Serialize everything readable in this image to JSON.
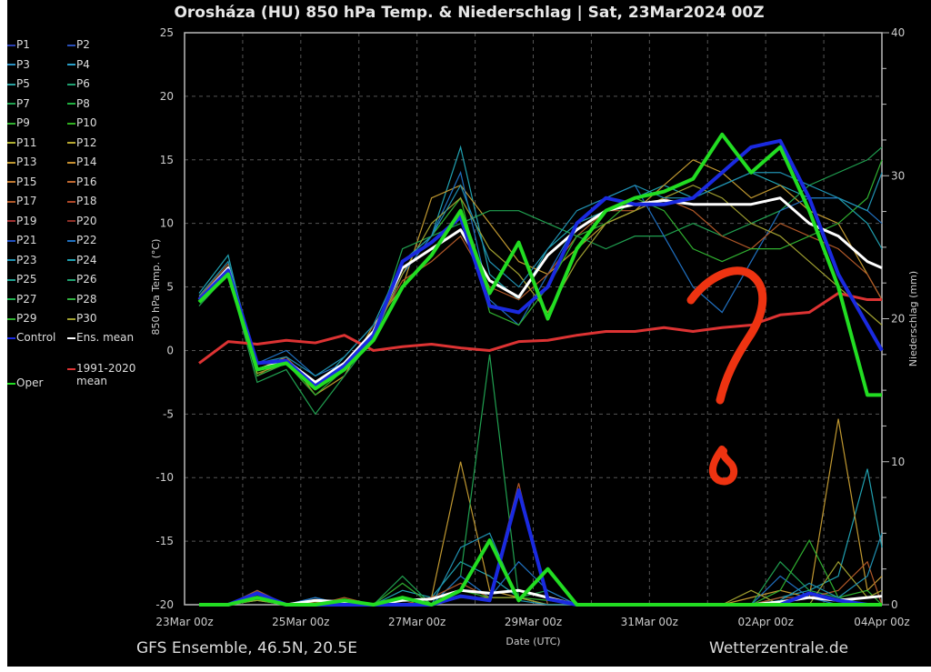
{
  "chart_data": {
    "type": "line",
    "title": "Orosháza  (HU)  850 hPa Temp. & Niederschlag | Sat, 23Mar2024 00Z",
    "xlabel": "Date (UTC)",
    "ylabel": "850 hPa Temp. (°C)",
    "y2label": "Niederschlag (mm)",
    "xlim_days": [
      0,
      12
    ],
    "ylim": [
      -20,
      25
    ],
    "y2lim": [
      0,
      40
    ],
    "grid": true,
    "x_ticks": [
      "23Mar 00z",
      "25Mar 00z",
      "27Mar 00z",
      "29Mar 00z",
      "31Mar 00z",
      "02Apr 00z",
      "04Apr 00z"
    ],
    "y_ticks": [
      "25",
      "20",
      "15",
      "10",
      "5",
      "0",
      "-5",
      "-10",
      "-15",
      "-20"
    ],
    "y2_ticks": [
      "40",
      "30",
      "20",
      "10",
      "0"
    ],
    "x_days": [
      0.25,
      0.75,
      1.25,
      1.75,
      2.25,
      2.75,
      3.25,
      3.75,
      4.25,
      4.75,
      5.25,
      5.75,
      6.25,
      6.75,
      7.25,
      7.75,
      8.25,
      8.75,
      9.25,
      9.75,
      10.25,
      10.75,
      11.25,
      11.75,
      12
    ],
    "legend": {
      "members": [
        "P1",
        "P2",
        "P3",
        "P4",
        "P5",
        "P6",
        "P7",
        "P8",
        "P9",
        "P10",
        "P11",
        "P12",
        "P13",
        "P14",
        "P15",
        "P16",
        "P17",
        "P18",
        "P19",
        "P20",
        "P21",
        "P22",
        "P23",
        "P24",
        "P25",
        "P26",
        "P27",
        "P28",
        "P29",
        "P30"
      ],
      "member_colors": [
        "#2a3fb0",
        "#2a4fb8",
        "#2a8fc0",
        "#2a9fc8",
        "#2aa0a0",
        "#20a070",
        "#20a050",
        "#20b040",
        "#30b030",
        "#30b020",
        "#b0b030",
        "#b8a830",
        "#c09830",
        "#c89030",
        "#c07830",
        "#c06830",
        "#b05828",
        "#b04828",
        "#a03030",
        "#903028",
        "#2050c0",
        "#2070c0",
        "#2090b0",
        "#20a0b0",
        "#20a090",
        "#20a070",
        "#20b050",
        "#30b040",
        "#30b030",
        "#a0a030"
      ],
      "control": "Control",
      "ens_mean": "Ens. mean",
      "clim_mean_line1": "1991-2020",
      "clim_mean_line2": "mean",
      "oper": "Oper"
    },
    "series": [
      {
        "name": "Ens. mean",
        "color": "#ffffff",
        "width": 3,
        "temp": [
          4,
          6.5,
          -1.5,
          -0.8,
          -2.5,
          -1,
          1.5,
          6.5,
          8,
          9.5,
          5.5,
          4.2,
          7.5,
          9.5,
          11,
          11.5,
          11.8,
          11.5,
          11.5,
          11.5,
          12,
          10,
          9,
          7,
          6.5
        ],
        "precip": [
          0,
          0,
          0.5,
          0,
          0.3,
          0.2,
          0,
          0.3,
          0.4,
          1,
          0.8,
          1,
          0.5,
          0,
          0,
          0,
          0,
          0,
          0,
          0,
          0.2,
          0.5,
          0.3,
          0.5,
          0.6
        ]
      },
      {
        "name": "Control",
        "color": "#1a2ae0",
        "width": 4,
        "temp": [
          4,
          6.3,
          -1,
          -0.8,
          -2.8,
          -1.2,
          1.2,
          7,
          8.5,
          10.5,
          3.5,
          3,
          5,
          10,
          12,
          11.5,
          11.5,
          12,
          14,
          16,
          16.5,
          12,
          6,
          2,
          0
        ],
        "precip": [
          0,
          0,
          0.8,
          0,
          0,
          0,
          0,
          0,
          0,
          0.6,
          0.3,
          8,
          0.4,
          0,
          0,
          0,
          0,
          0,
          0,
          0,
          0,
          0.8,
          0.3,
          0,
          0
        ]
      },
      {
        "name": "Oper",
        "color": "#22dd22",
        "width": 4,
        "temp": [
          3.8,
          6,
          -1.5,
          -1,
          -3,
          -1.5,
          0.8,
          5,
          7.5,
          11,
          4.5,
          8.5,
          2.5,
          8,
          11,
          12,
          12.5,
          13.5,
          17,
          14,
          16,
          11,
          5,
          -3.5,
          -3.5
        ],
        "precip": [
          0,
          0,
          0.5,
          0,
          0,
          0.3,
          0,
          0.5,
          0,
          1,
          4.5,
          0.3,
          2.5,
          0,
          0,
          0,
          0,
          0,
          0,
          0,
          0,
          0,
          0,
          0,
          0
        ]
      },
      {
        "name": "1991-2020 mean",
        "color": "#dd3333",
        "width": 3,
        "temp": [
          -1,
          0.7,
          0.5,
          0.8,
          0.6,
          1.2,
          0,
          0.3,
          0.5,
          0.2,
          0,
          0.7,
          0.8,
          1.2,
          1.5,
          1.5,
          1.8,
          1.5,
          1.8,
          2,
          2.8,
          3,
          4.5,
          4,
          4
        ]
      }
    ],
    "members_sample": [
      {
        "color": "#20a0b0",
        "temp": [
          4.5,
          7.5,
          -2,
          -1,
          -3,
          -0.5,
          2,
          7,
          9,
          16,
          6,
          4,
          8,
          10,
          11,
          12,
          13,
          12,
          13,
          14,
          13,
          12,
          12,
          10,
          8
        ],
        "precip": [
          0,
          0,
          0.3,
          0,
          0.5,
          0,
          0,
          1,
          0.5,
          3,
          2,
          0.5,
          0,
          0,
          0,
          0,
          0,
          0,
          0,
          0,
          0.5,
          1,
          2,
          9.5,
          4
        ]
      },
      {
        "color": "#c09830",
        "temp": [
          4,
          6,
          -1.5,
          -0.5,
          -3.5,
          -2,
          2,
          5,
          12,
          13,
          10,
          7,
          6,
          8,
          10,
          11,
          13,
          15,
          14,
          12,
          13,
          11,
          10,
          6,
          4
        ],
        "precip": [
          0,
          0,
          0.5,
          0,
          0.2,
          0,
          0,
          0,
          0.5,
          10,
          1,
          0.5,
          0,
          0,
          0,
          0,
          0,
          0,
          0,
          0.5,
          1,
          0.5,
          13,
          1,
          2
        ]
      },
      {
        "color": "#20a050",
        "temp": [
          3.5,
          6,
          -2.5,
          -1.5,
          -5,
          -2,
          1,
          8,
          9,
          10,
          11,
          11,
          10,
          9,
          8,
          9,
          9,
          10,
          9,
          10,
          11,
          13,
          14,
          15,
          16
        ],
        "precip": [
          0,
          0,
          0.3,
          0,
          0,
          0,
          0,
          2,
          0,
          2,
          17.5,
          0.5,
          1,
          0,
          0,
          0,
          0,
          0,
          0,
          0,
          3,
          1,
          0.5,
          0,
          0
        ]
      },
      {
        "color": "#2070c0",
        "temp": [
          4,
          6.5,
          -1,
          0,
          -2,
          -1,
          1,
          6,
          9,
          14,
          4,
          2,
          6,
          10,
          12,
          13,
          9,
          5,
          3,
          7,
          11,
          12,
          12,
          11,
          10
        ],
        "precip": [
          0,
          0,
          1,
          0,
          0.5,
          0,
          0,
          0.5,
          0,
          2,
          0.5,
          3,
          1,
          0,
          0,
          0,
          0,
          0,
          0,
          0,
          2,
          0.5,
          0,
          0,
          0
        ]
      },
      {
        "color": "#b05828",
        "temp": [
          4.2,
          6.8,
          -2,
          -0.5,
          -3,
          -1,
          1.5,
          5.5,
          7,
          9,
          5,
          4,
          6,
          9,
          11,
          11,
          12,
          11,
          9,
          8,
          10,
          9,
          8,
          6,
          4
        ],
        "precip": [
          0,
          0,
          1,
          0,
          0,
          0.5,
          0,
          0,
          0.5,
          1.5,
          0.5,
          8.5,
          0,
          0,
          0,
          0,
          0,
          0,
          0,
          0,
          0.5,
          0.5,
          1,
          3,
          0
        ]
      },
      {
        "color": "#30b030",
        "temp": [
          4,
          6,
          -2,
          -1,
          -3.5,
          -1.5,
          1,
          7,
          9,
          12,
          3,
          2,
          5,
          9,
          10,
          12,
          11,
          8,
          7,
          8,
          8,
          9,
          10,
          12,
          15
        ],
        "precip": [
          0,
          0,
          0.5,
          0,
          0,
          0,
          0,
          1.5,
          0,
          1,
          0.5,
          0.5,
          0.3,
          0,
          0,
          0,
          0,
          0,
          0,
          0,
          1,
          4.5,
          0.5,
          1,
          0
        ]
      },
      {
        "color": "#a0a030",
        "temp": [
          4,
          6.2,
          -1.8,
          -1,
          -2.8,
          -1.2,
          1.2,
          6,
          10,
          12,
          8,
          6,
          3,
          7,
          10,
          11,
          12,
          13,
          12,
          10,
          9,
          7,
          5,
          3,
          2
        ],
        "precip": [
          0,
          0,
          0.3,
          0,
          0.3,
          0,
          0,
          0.5,
          0,
          0.5,
          0.5,
          0.5,
          0,
          0,
          0,
          0,
          0,
          0,
          0,
          1,
          0,
          0,
          3,
          0.5,
          1
        ]
      },
      {
        "color": "#2090b0",
        "temp": [
          4.3,
          7,
          -1,
          -0.5,
          -2,
          -0.5,
          2,
          7,
          9,
          13,
          7,
          5,
          8,
          11,
          12,
          13,
          12,
          12,
          13,
          14,
          14,
          13,
          12,
          11,
          14
        ],
        "precip": [
          0,
          0,
          0.5,
          0,
          0,
          0.3,
          0,
          0.5,
          0,
          4,
          5,
          0.3,
          0,
          0,
          0,
          0,
          0,
          0,
          0,
          0,
          0.3,
          1.5,
          0.5,
          2,
          5
        ]
      }
    ]
  },
  "footer": {
    "left": "GFS Ensemble, 46.5N, 20.5E",
    "right": "Wetterzentrale.de"
  },
  "annotation": {
    "color": "#ee3311"
  }
}
